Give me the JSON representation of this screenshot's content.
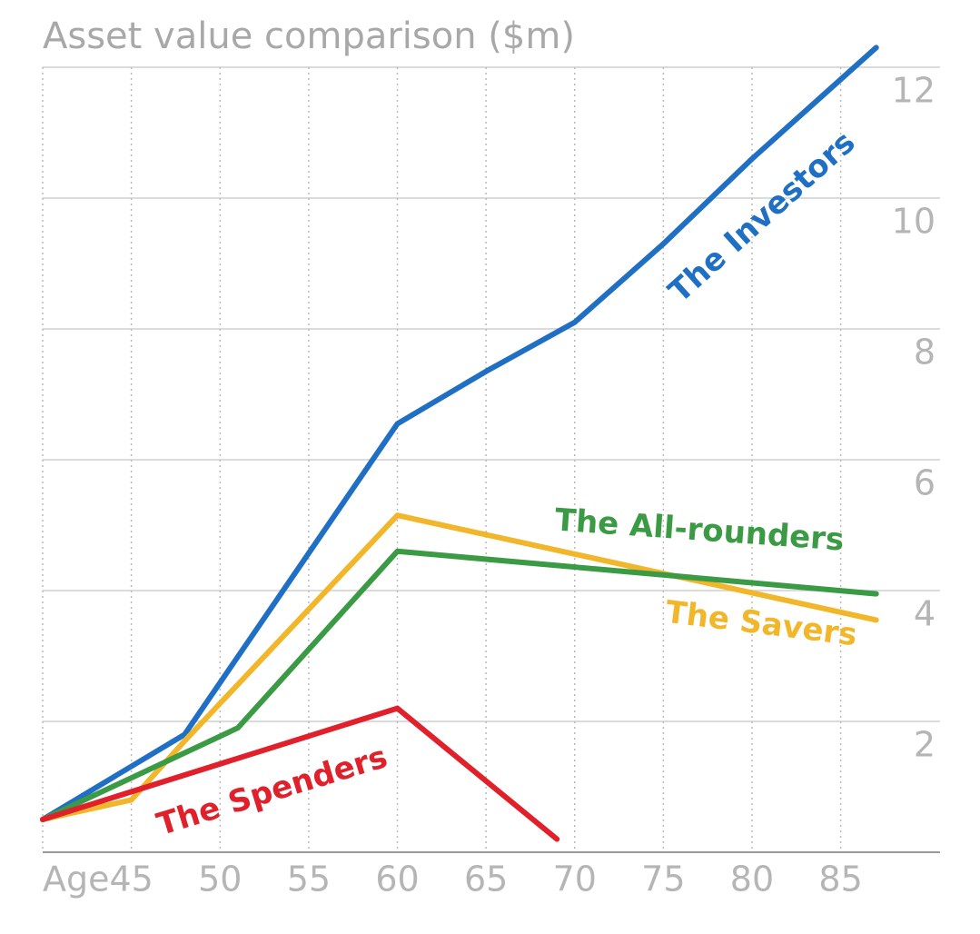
{
  "chart_data": {
    "type": "line",
    "title": "Asset value comparison ($m)",
    "x_label": "Age",
    "xlim": [
      40,
      90.5
    ],
    "xticks": [
      45,
      50,
      55,
      60,
      65,
      70,
      75,
      80,
      85
    ],
    "ylim": [
      0,
      12
    ],
    "yticks": [
      2,
      4,
      6,
      8,
      10,
      12
    ],
    "grid": true,
    "series": [
      {
        "name": "The Investors",
        "color": "#1f6fc5",
        "x": [
          40,
          48,
          60,
          65,
          70,
          75,
          80,
          87
        ],
        "values": [
          0.5,
          1.8,
          6.55,
          7.35,
          8.1,
          9.3,
          10.6,
          12.3
        ]
      },
      {
        "name": "The Savers",
        "color": "#f2b62a",
        "x": [
          40,
          45,
          48,
          60,
          87
        ],
        "values": [
          0.5,
          0.8,
          1.7,
          5.15,
          3.55
        ]
      },
      {
        "name": "The All-rounders",
        "color": "#3b9a44",
        "x": [
          40,
          51,
          60,
          87
        ],
        "values": [
          0.5,
          1.9,
          4.6,
          3.95
        ]
      },
      {
        "name": "The Spenders",
        "color": "#e0202a",
        "x": [
          40,
          60,
          69
        ],
        "values": [
          0.5,
          2.2,
          0.2
        ]
      }
    ]
  }
}
